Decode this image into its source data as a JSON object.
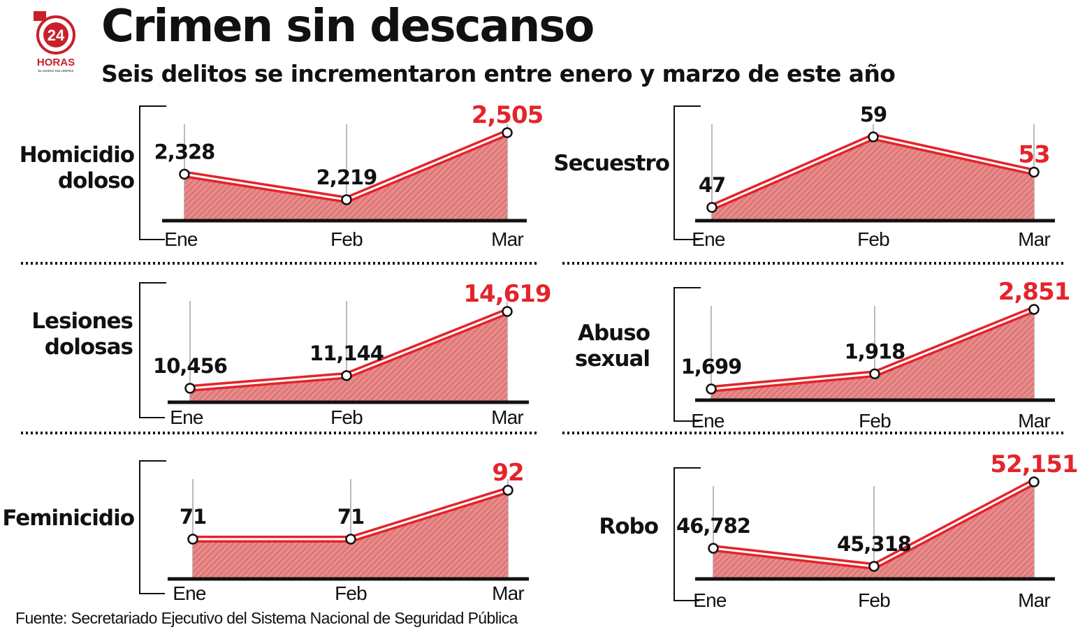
{
  "header": {
    "title": "Crimen sin descanso",
    "subtitle": "Seis delitos se incrementaron entre enero y marzo de este año"
  },
  "logo": {
    "number": "24",
    "name": "HORAS",
    "tagline": "EL DIARIO SIN LÍMITES"
  },
  "source": "Fuente: Secretariado Ejecutivo del Sistema Nacional de Seguridad Pública",
  "colors": {
    "accent": "#e3242b",
    "fill": "#e88a8a",
    "axis": "#111111",
    "guide": "#bbbbbb"
  },
  "chart_data": [
    {
      "type": "area",
      "title_lines": [
        "Homicidio",
        "doloso"
      ],
      "categories": [
        "Ene",
        "Feb",
        "Mar"
      ],
      "values": [
        2328,
        2219,
        2505
      ],
      "labels": [
        "2,328",
        "2,219",
        "2,505"
      ]
    },
    {
      "type": "area",
      "title_lines": [
        "Secuestro"
      ],
      "categories": [
        "Ene",
        "Feb",
        "Mar"
      ],
      "values": [
        47,
        59,
        53
      ],
      "labels": [
        "47",
        "59",
        "53"
      ]
    },
    {
      "type": "area",
      "title_lines": [
        "Lesiones",
        "dolosas"
      ],
      "categories": [
        "Ene",
        "Feb",
        "Mar"
      ],
      "values": [
        10456,
        11144,
        14619
      ],
      "labels": [
        "10,456",
        "11,144",
        "14,619"
      ]
    },
    {
      "type": "area",
      "title_lines": [
        "Abuso",
        "sexual"
      ],
      "categories": [
        "Ene",
        "Feb",
        "Mar"
      ],
      "values": [
        1699,
        1918,
        2851
      ],
      "labels": [
        "1,699",
        "1,918",
        "2,851"
      ]
    },
    {
      "type": "area",
      "title_lines": [
        "Feminicidio"
      ],
      "categories": [
        "Ene",
        "Feb",
        "Mar"
      ],
      "values": [
        71,
        71,
        92
      ],
      "labels": [
        "71",
        "71",
        "92"
      ]
    },
    {
      "type": "area",
      "title_lines": [
        "Robo"
      ],
      "categories": [
        "Ene",
        "Feb",
        "Mar"
      ],
      "values": [
        46782,
        45318,
        52151
      ],
      "labels": [
        "46,782",
        "45,318",
        "52,151"
      ]
    }
  ]
}
